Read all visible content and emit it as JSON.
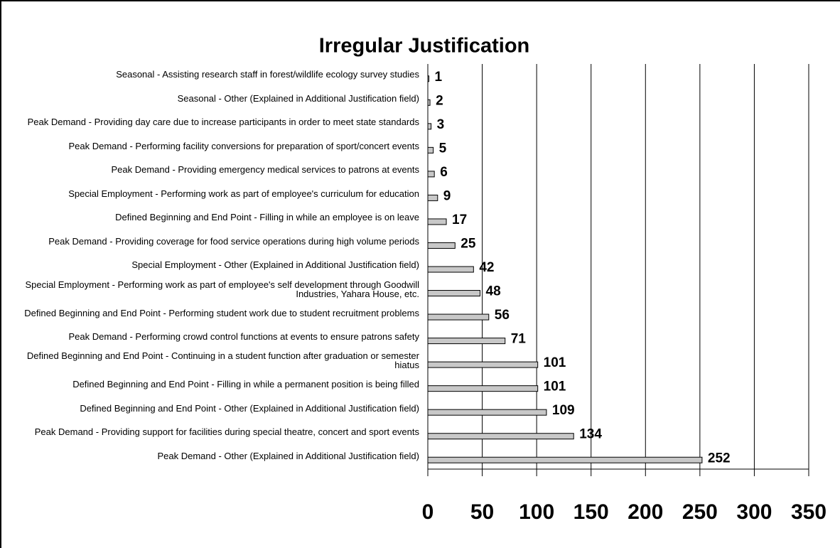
{
  "chart_data": {
    "type": "bar",
    "orientation": "horizontal",
    "title": "Irregular Justification",
    "categories": [
      "Seasonal - Assisting research staff in forest/wildlife ecology survey studies",
      "Seasonal - Other (Explained in Additional Justification field)",
      "Peak Demand - Providing day care due to increase participants in order to meet state standards",
      "Peak Demand - Performing facility conversions for preparation of sport/concert events",
      "Peak Demand - Providing emergency medical services to patrons at events",
      "Special Employment - Performing work as part of employee's curriculum for education",
      "Defined Beginning and End Point - Filling in while an employee is on leave",
      "Peak Demand - Providing coverage for food service operations during high volume periods",
      "Special Employment - Other (Explained in Additional Justification field)",
      "Special Employment - Performing work as part of employee's self development through Goodwill Industries, Yahara House, etc.",
      "Defined Beginning and End Point - Performing student work due to student recruitment problems",
      "Peak Demand - Performing crowd control functions at events to ensure patrons safety",
      "Defined Beginning and End Point - Continuing in a student function after graduation or semester hiatus",
      "Defined Beginning and End Point - Filling in while a permanent position is being filled",
      "Defined Beginning and End Point - Other (Explained in Additional Justification field)",
      "Peak Demand - Providing support for facilities during special theatre, concert and sport events",
      "Peak Demand - Other (Explained in Additional Justification field)"
    ],
    "values": [
      1,
      2,
      3,
      5,
      6,
      9,
      17,
      25,
      42,
      48,
      56,
      71,
      101,
      101,
      109,
      134,
      252
    ],
    "color": "#c8c8c8",
    "xlim": [
      0,
      350
    ],
    "xticks": [
      0,
      50,
      100,
      150,
      200,
      250,
      300,
      350
    ],
    "grid": true
  }
}
